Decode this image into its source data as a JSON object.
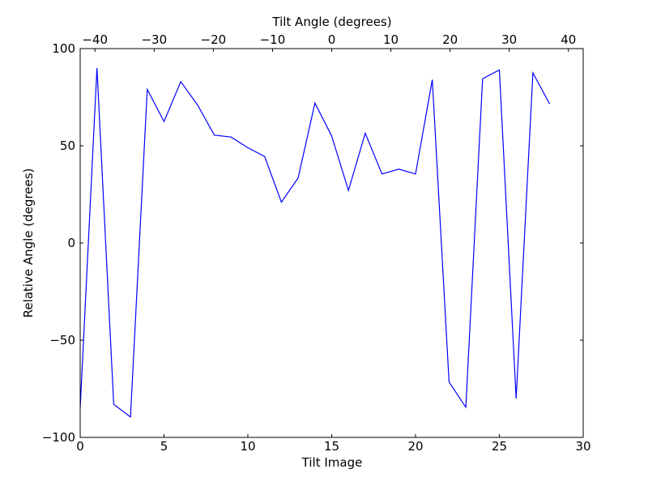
{
  "chart_data": {
    "type": "line",
    "xlabel": "Tilt Image",
    "ylabel": "Relative Angle (degrees)",
    "top_xlabel": "Tilt Angle (degrees)",
    "xlim": [
      0,
      30
    ],
    "ylim": [
      -100,
      100
    ],
    "top_xlim": [
      -42.5,
      42.5
    ],
    "x_ticks": [
      0,
      5,
      10,
      15,
      20,
      25,
      30
    ],
    "x_tick_labels": [
      "0",
      "5",
      "10",
      "15",
      "20",
      "25",
      "30"
    ],
    "y_ticks": [
      -100,
      -50,
      0,
      50,
      100
    ],
    "y_tick_labels": [
      "−100",
      "−50",
      "0",
      "50",
      "100"
    ],
    "top_x_ticks": [
      -40,
      -30,
      -20,
      -10,
      0,
      10,
      20,
      30,
      40
    ],
    "top_x_tick_labels": [
      "−40",
      "−30",
      "−20",
      "−10",
      "0",
      "10",
      "20",
      "30",
      "40"
    ],
    "grid": false,
    "line_color": "#0000ff",
    "series": [
      {
        "x": [
          0,
          1,
          2,
          3,
          4,
          5,
          6,
          7,
          8,
          9,
          10,
          11,
          12,
          13,
          14,
          15,
          16,
          17,
          18,
          19,
          20,
          21,
          22,
          23,
          24,
          25,
          26,
          27,
          28
        ],
        "values": [
          -85,
          90,
          -83,
          -89.5,
          79,
          62.5,
          83,
          71,
          55.5,
          54.5,
          49,
          44.5,
          21,
          33.5,
          72,
          55,
          27,
          56.5,
          35.5,
          38,
          35.5,
          84,
          -71.5,
          -84.5,
          84.5,
          89,
          -80,
          87.5,
          71.5
        ]
      }
    ]
  }
}
